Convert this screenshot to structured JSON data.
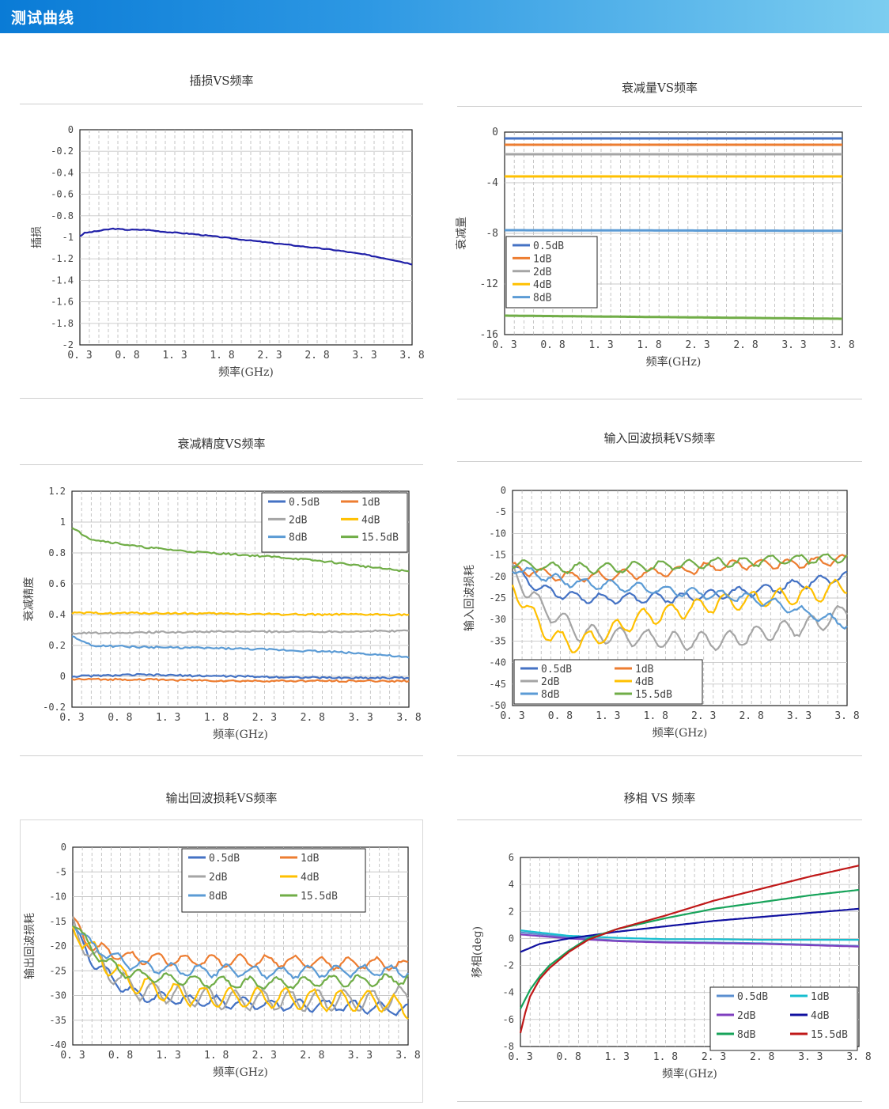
{
  "header": {
    "title": "测试曲线"
  },
  "charts": [
    {
      "id": "il",
      "title": "插损VS频率",
      "chart_data": {
        "type": "line",
        "title": "插损VS频率",
        "xlabel": "频率(GHz)",
        "ylabel": "插损",
        "xlim": [
          0.3,
          3.8
        ],
        "ylim": [
          -2,
          0
        ],
        "xticks": [
          "0.3",
          "0.8",
          "1.3",
          "1.8",
          "2.3",
          "2.8",
          "3.3",
          "3.8"
        ],
        "yticks": [
          "0",
          "-0.2",
          "-0.4",
          "-0.6",
          "-0.8",
          "-1",
          "-1.2",
          "-1.4",
          "-1.6",
          "-1.8",
          "-2"
        ],
        "grid": true,
        "legend": "none",
        "series": [
          {
            "color": "#1f1fa8",
            "x": [
              0.3,
              0.35,
              0.5,
              0.65,
              0.8,
              1.0,
              1.2,
              1.5,
              1.8,
              2.1,
              2.4,
              2.7,
              3.0,
              3.3,
              3.6,
              3.8
            ],
            "y": [
              -0.99,
              -0.96,
              -0.94,
              -0.92,
              -0.93,
              -0.93,
              -0.95,
              -0.97,
              -1.0,
              -1.03,
              -1.06,
              -1.09,
              -1.12,
              -1.16,
              -1.21,
              -1.25
            ]
          }
        ]
      }
    },
    {
      "id": "att",
      "title": "衰减量VS频率",
      "chart_data": {
        "type": "line",
        "title": "衰减量VS频率",
        "xlabel": "频率(GHz)",
        "ylabel": "衰减量",
        "xlim": [
          0.3,
          3.8
        ],
        "ylim": [
          -16,
          0
        ],
        "xticks": [
          "0.3",
          "0.8",
          "1.3",
          "1.8",
          "2.3",
          "2.8",
          "3.3",
          "3.8"
        ],
        "yticks": [
          "0",
          "-4",
          "-8",
          "-12",
          "-16"
        ],
        "grid": true,
        "legend": "left-middle",
        "series": [
          {
            "name": "0.5dB",
            "color": "#4472c4",
            "x": [
              0.3,
              3.8
            ],
            "y": [
              -0.5,
              -0.5
            ]
          },
          {
            "name": "1dB",
            "color": "#ed7d31",
            "x": [
              0.3,
              3.8
            ],
            "y": [
              -1.0,
              -1.0
            ]
          },
          {
            "name": "2dB",
            "color": "#a5a5a5",
            "x": [
              0.3,
              3.8
            ],
            "y": [
              -1.75,
              -1.75
            ]
          },
          {
            "name": "4dB",
            "color": "#ffc000",
            "x": [
              0.3,
              3.8
            ],
            "y": [
              -3.5,
              -3.5
            ]
          },
          {
            "name": "8dB",
            "color": "#5b9bd5",
            "x": [
              0.3,
              3.8
            ],
            "y": [
              -7.75,
              -7.8
            ]
          },
          {
            "name": "",
            "color": "#70ad47",
            "x": [
              0.3,
              3.8
            ],
            "y": [
              -14.5,
              -14.75
            ]
          }
        ]
      }
    },
    {
      "id": "acc",
      "title": "衰减精度VS频率",
      "chart_data": {
        "type": "line",
        "title": "衰减精度VS频率",
        "xlabel": "频率(GHz)",
        "ylabel": "衰减精度",
        "xlim": [
          0.3,
          3.8
        ],
        "ylim": [
          -0.2,
          1.2
        ],
        "xticks": [
          "0.3",
          "0.8",
          "1.3",
          "1.8",
          "2.3",
          "2.8",
          "3.3",
          "3.8"
        ],
        "yticks": [
          "1.2",
          "1",
          "0.8",
          "0.6",
          "0.4",
          "0.2",
          "0",
          "-0.2"
        ],
        "grid": true,
        "legend": "top-right",
        "series": [
          {
            "name": "0.5dB",
            "color": "#4472c4",
            "x": [
              0.3,
              1.0,
              2.0,
              3.0,
              3.8
            ],
            "y": [
              0.0,
              0.01,
              0.0,
              -0.01,
              -0.01
            ]
          },
          {
            "name": "1dB",
            "color": "#ed7d31",
            "x": [
              0.3,
              1.0,
              2.0,
              3.0,
              3.8
            ],
            "y": [
              -0.02,
              -0.02,
              -0.03,
              -0.03,
              -0.03
            ]
          },
          {
            "name": "2dB",
            "color": "#a5a5a5",
            "x": [
              0.3,
              1.0,
              2.0,
              3.0,
              3.8
            ],
            "y": [
              0.28,
              0.285,
              0.29,
              0.29,
              0.295
            ]
          },
          {
            "name": "4dB",
            "color": "#ffc000",
            "x": [
              0.3,
              1.0,
              2.0,
              3.0,
              3.8
            ],
            "y": [
              0.41,
              0.41,
              0.405,
              0.4,
              0.4
            ]
          },
          {
            "name": "8dB",
            "color": "#5b9bd5",
            "x": [
              0.3,
              0.5,
              1.0,
              2.0,
              3.0,
              3.5,
              3.8
            ],
            "y": [
              0.26,
              0.2,
              0.19,
              0.18,
              0.16,
              0.14,
              0.12
            ]
          },
          {
            "name": "15.5dB",
            "color": "#70ad47",
            "x": [
              0.3,
              0.5,
              0.8,
              1.0,
              1.5,
              2.0,
              2.5,
              3.0,
              3.5,
              3.8
            ],
            "y": [
              0.96,
              0.89,
              0.86,
              0.84,
              0.81,
              0.79,
              0.77,
              0.74,
              0.7,
              0.68
            ]
          }
        ]
      }
    },
    {
      "id": "irl",
      "title": "输入回波损耗VS频率",
      "chart_data": {
        "type": "line",
        "title": "输入回波损耗VS频率",
        "xlabel": "频率(GHz)",
        "ylabel": "输入回波损耗",
        "xlim": [
          0.3,
          3.8
        ],
        "ylim": [
          -50,
          0
        ],
        "xticks": [
          "0.3",
          "0.8",
          "1.3",
          "1.8",
          "2.3",
          "2.8",
          "3.3",
          "3.8"
        ],
        "yticks": [
          "0",
          "-5",
          "-10",
          "-15",
          "-20",
          "-25",
          "-30",
          "-35",
          "-40",
          "-45",
          "-50"
        ],
        "grid": true,
        "legend": "bottom-left",
        "series": [
          {
            "name": "0.5dB",
            "color": "#4472c4",
            "x": [
              0.3,
              0.6,
              1.0,
              1.5,
              2.0,
              2.5,
              3.0,
              3.5,
              3.8
            ],
            "y": [
              -18,
              -23,
              -25,
              -25,
              -25,
              -24,
              -23,
              -21,
              -20
            ]
          },
          {
            "name": "1dB",
            "color": "#ed7d31",
            "x": [
              0.3,
              0.8,
              1.3,
              1.8,
              2.3,
              2.8,
              3.3,
              3.8
            ],
            "y": [
              -18,
              -20,
              -20,
              -19,
              -18,
              -17,
              -17,
              -16
            ]
          },
          {
            "name": "2dB",
            "color": "#a5a5a5",
            "x": [
              0.3,
              0.6,
              1.0,
              1.5,
              2.0,
              2.5,
              3.0,
              3.5,
              3.8
            ],
            "y": [
              -19,
              -27,
              -33,
              -34,
              -35,
              -35,
              -33,
              -31,
              -28
            ]
          },
          {
            "name": "4dB",
            "color": "#ffc000",
            "x": [
              0.3,
              0.6,
              0.9,
              1.2,
              1.6,
              2.0,
              2.5,
              3.0,
              3.5,
              3.8
            ],
            "y": [
              -22,
              -32,
              -36,
              -34,
              -30,
              -28,
              -26,
              -25,
              -24,
              -22
            ]
          },
          {
            "name": "8dB",
            "color": "#5b9bd5",
            "x": [
              0.3,
              0.8,
              1.3,
              1.8,
              2.3,
              2.8,
              3.3,
              3.8
            ],
            "y": [
              -18,
              -21,
              -22,
              -23,
              -24,
              -25,
              -28,
              -31
            ]
          },
          {
            "name": "15.5dB",
            "color": "#70ad47",
            "x": [
              0.3,
              0.8,
              1.3,
              1.8,
              2.3,
              2.8,
              3.3,
              3.8
            ],
            "y": [
              -17,
              -18,
              -18,
              -17.5,
              -17,
              -16.5,
              -16,
              -15.5
            ]
          }
        ]
      }
    },
    {
      "id": "orl",
      "title": "输出回波损耗VS频率",
      "chart_data": {
        "type": "line",
        "title": "输出回波损耗VS频率",
        "xlabel": "频率(GHz)",
        "ylabel": "输出回波损耗",
        "xlim": [
          0.3,
          3.8
        ],
        "ylim": [
          -40,
          0
        ],
        "xticks": [
          "0.3",
          "0.8",
          "1.3",
          "1.8",
          "2.3",
          "2.8",
          "3.3",
          "3.8"
        ],
        "yticks": [
          "0",
          "-5",
          "-10",
          "-15",
          "-20",
          "-25",
          "-30",
          "-35",
          "-40"
        ],
        "grid": true,
        "legend": "top-center",
        "series": [
          {
            "name": "0.5dB",
            "color": "#4472c4",
            "x": [
              0.3,
              0.5,
              0.8,
              1.0,
              1.5,
              2.0,
              2.5,
              3.0,
              3.5,
              3.8
            ],
            "y": [
              -16,
              -23,
              -28,
              -30,
              -31,
              -31.5,
              -32,
              -32,
              -32.5,
              -33
            ]
          },
          {
            "name": "1dB",
            "color": "#ed7d31",
            "x": [
              0.3,
              0.5,
              0.8,
              1.0,
              1.5,
              2.0,
              2.5,
              3.0,
              3.5,
              3.8
            ],
            "y": [
              -15,
              -20,
              -22,
              -22.5,
              -23,
              -23,
              -23,
              -23.5,
              -23.5,
              -24
            ]
          },
          {
            "name": "2dB",
            "color": "#a5a5a5",
            "x": [
              0.3,
              0.5,
              0.8,
              1.0,
              1.5,
              2.0,
              2.5,
              3.0,
              3.5,
              3.8
            ],
            "y": [
              -16,
              -22,
              -27,
              -29,
              -30,
              -31,
              -31,
              -31,
              -31,
              -30
            ]
          },
          {
            "name": "4dB",
            "color": "#ffc000",
            "x": [
              0.3,
              0.5,
              0.8,
              1.0,
              1.5,
              2.0,
              2.5,
              3.0,
              3.5,
              3.8
            ],
            "y": [
              -16,
              -21,
              -26,
              -28,
              -30,
              -30.5,
              -30.5,
              -31,
              -31,
              -33
            ]
          },
          {
            "name": "8dB",
            "color": "#5b9bd5",
            "x": [
              0.3,
              0.5,
              0.8,
              1.0,
              1.5,
              2.0,
              2.5,
              3.0,
              3.5,
              3.8
            ],
            "y": [
              -15,
              -20,
              -23,
              -24,
              -25,
              -25,
              -25.5,
              -25,
              -25,
              -25
            ]
          },
          {
            "name": "15.5dB",
            "color": "#70ad47",
            "x": [
              0.3,
              0.5,
              0.8,
              1.0,
              1.5,
              2.0,
              2.5,
              3.0,
              3.5,
              3.8
            ],
            "y": [
              -15,
              -21,
              -25,
              -26,
              -27,
              -27.5,
              -27.5,
              -27,
              -27,
              -26.5
            ]
          }
        ]
      }
    },
    {
      "id": "phase",
      "title": "移相 VS 频率",
      "chart_data": {
        "type": "line",
        "title": "移相 VS 频率",
        "xlabel": "频率(GHz)",
        "ylabel": "移相(deg)",
        "xlim": [
          0.3,
          3.8
        ],
        "ylim": [
          -8,
          6
        ],
        "xticks": [
          "0.3",
          "0.8",
          "1.3",
          "1.8",
          "2.3",
          "2.8",
          "3.3",
          "3.8"
        ],
        "yticks": [
          "6",
          "4",
          "2",
          "0",
          "-2",
          "-4",
          "-6",
          "-8"
        ],
        "grid": true,
        "legend": "bottom-right",
        "series": [
          {
            "name": "0.5dB",
            "color": "#5b8fd0",
            "x": [
              0.3,
              0.8,
              1.3,
              1.8,
              2.3,
              2.8,
              3.3,
              3.8
            ],
            "y": [
              0.45,
              0.1,
              -0.15,
              -0.25,
              -0.3,
              -0.35,
              -0.45,
              -0.55
            ]
          },
          {
            "name": "1dB",
            "color": "#17becf",
            "x": [
              0.3,
              0.8,
              1.3,
              1.8,
              2.3,
              2.8,
              3.3,
              3.8
            ],
            "y": [
              0.6,
              0.2,
              0.05,
              -0.05,
              -0.05,
              -0.1,
              -0.1,
              -0.1
            ]
          },
          {
            "name": "2dB",
            "color": "#7f3fbf",
            "x": [
              0.3,
              0.8,
              1.3,
              1.8,
              2.3,
              2.8,
              3.3,
              3.8
            ],
            "y": [
              0.3,
              0.0,
              -0.2,
              -0.3,
              -0.35,
              -0.4,
              -0.5,
              -0.6
            ]
          },
          {
            "name": "4dB",
            "color": "#1010a0",
            "x": [
              0.3,
              0.5,
              0.8,
              1.0,
              1.3,
              1.8,
              2.3,
              2.8,
              3.3,
              3.8
            ],
            "y": [
              -1.0,
              -0.4,
              0.0,
              0.2,
              0.5,
              0.9,
              1.3,
              1.6,
              1.9,
              2.2
            ]
          },
          {
            "name": "8dB",
            "color": "#17a35a",
            "x": [
              0.3,
              0.4,
              0.5,
              0.6,
              0.8,
              1.0,
              1.3,
              1.8,
              2.3,
              2.8,
              3.3,
              3.8
            ],
            "y": [
              -5.2,
              -3.8,
              -2.8,
              -2.0,
              -0.9,
              0.0,
              0.7,
              1.5,
              2.2,
              2.7,
              3.2,
              3.6
            ]
          },
          {
            "name": "15.5dB",
            "color": "#c01818",
            "x": [
              0.3,
              0.35,
              0.4,
              0.5,
              0.6,
              0.8,
              1.0,
              1.3,
              1.8,
              2.3,
              2.8,
              3.3,
              3.8
            ],
            "y": [
              -7.0,
              -5.5,
              -4.3,
              -3.0,
              -2.2,
              -1.0,
              -0.1,
              0.7,
              1.7,
              2.8,
              3.7,
              4.6,
              5.4
            ]
          }
        ]
      }
    }
  ]
}
